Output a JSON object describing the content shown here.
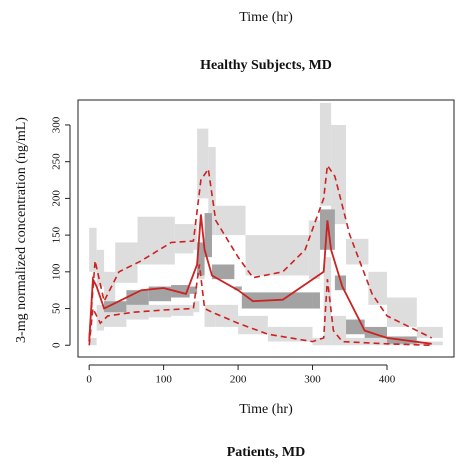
{
  "chart_data": {
    "type": "line",
    "header_label": "Time (hr)",
    "title": "Healthy Subjects, MD",
    "xlabel": "Time (hr)",
    "ylabel": "3-mg normalized concentration (ng/mL)",
    "footer_title": "Patients, MD",
    "xlim": [
      -15,
      490
    ],
    "ylim": [
      -16,
      334
    ],
    "xticks": [
      0,
      100,
      200,
      300,
      400
    ],
    "yticks": [
      0,
      50,
      100,
      150,
      200,
      250,
      300
    ],
    "bands": [
      {
        "color": "#dddddd",
        "edges": [
          0,
          10,
          20,
          35,
          65,
          115,
          140,
          145,
          160,
          170,
          210,
          295,
          310,
          325,
          345,
          375,
          400,
          440,
          475
        ],
        "low": [
          100,
          80,
          60,
          85,
          110,
          125,
          130,
          200,
          150,
          150,
          95,
          90,
          190,
          165,
          110,
          55,
          25,
          10
        ],
        "high": [
          160,
          130,
          100,
          140,
          175,
          165,
          165,
          295,
          270,
          190,
          150,
          170,
          330,
          300,
          145,
          100,
          65,
          25
        ]
      },
      {
        "color": "#dddddd",
        "edges": [
          0,
          10,
          20,
          50,
          80,
          110,
          140,
          148,
          155,
          170,
          200,
          240,
          300,
          315,
          325,
          345,
          400,
          475
        ],
        "low": [
          0,
          20,
          25,
          35,
          38,
          40,
          45,
          90,
          25,
          25,
          15,
          5,
          0,
          0,
          0,
          0,
          0
        ],
        "high": [
          10,
          55,
          45,
          55,
          55,
          55,
          60,
          140,
          55,
          55,
          40,
          25,
          10,
          120,
          40,
          10,
          5
        ]
      },
      {
        "color": "#a3a3a3",
        "edges": [
          20,
          50,
          80,
          110,
          135,
          145,
          155,
          165,
          195,
          205,
          300,
          310,
          330,
          345,
          370,
          400,
          440
        ],
        "low": [
          45,
          55,
          60,
          65,
          70,
          95,
          120,
          90,
          75,
          50,
          50,
          130,
          75,
          15,
          10,
          2
        ],
        "high": [
          60,
          75,
          80,
          82,
          80,
          140,
          180,
          110,
          80,
          72,
          72,
          185,
          95,
          35,
          25,
          12
        ]
      }
    ],
    "series": [
      {
        "color": "#cc2222",
        "dash": false,
        "x": [
          0,
          5,
          10,
          20,
          40,
          70,
          100,
          130,
          145,
          150,
          155,
          165,
          200,
          220,
          260,
          315,
          320,
          325,
          340,
          370,
          400,
          460
        ],
        "values": [
          5,
          90,
          80,
          50,
          60,
          75,
          78,
          70,
          110,
          178,
          130,
          95,
          75,
          60,
          62,
          100,
          170,
          130,
          80,
          20,
          10,
          2
        ]
      },
      {
        "color": "#cc2222",
        "dash": true,
        "x": [
          0,
          8,
          20,
          40,
          70,
          110,
          140,
          150,
          160,
          170,
          200,
          220,
          260,
          290,
          315,
          320,
          330,
          350,
          380,
          400,
          460
        ],
        "values": [
          10,
          115,
          60,
          100,
          115,
          140,
          142,
          225,
          240,
          170,
          120,
          92,
          100,
          130,
          200,
          245,
          230,
          150,
          70,
          40,
          10
        ]
      },
      {
        "color": "#cc2222",
        "dash": true,
        "x": [
          0,
          5,
          15,
          25,
          60,
          100,
          140,
          148,
          155,
          165,
          200,
          240,
          300,
          315,
          320,
          328,
          340,
          400,
          460
        ],
        "values": [
          0,
          50,
          30,
          40,
          45,
          48,
          50,
          110,
          50,
          45,
          30,
          15,
          5,
          10,
          90,
          20,
          5,
          2,
          0
        ]
      }
    ]
  }
}
